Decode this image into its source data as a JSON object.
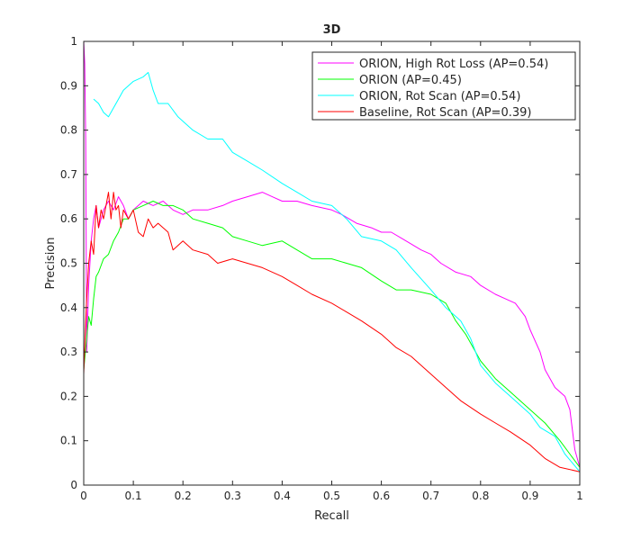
{
  "chart_data": {
    "type": "line",
    "title": "3D",
    "xlabel": "Recall",
    "ylabel": "Precision",
    "xlim": [
      0,
      1
    ],
    "ylim": [
      0,
      1
    ],
    "grid": false,
    "legend_position": "top-right",
    "xticks": [
      0,
      0.1,
      0.2,
      0.3,
      0.4,
      0.5,
      0.6,
      0.7,
      0.8,
      0.9,
      1
    ],
    "yticks": [
      0,
      0.1,
      0.2,
      0.3,
      0.4,
      0.5,
      0.6,
      0.7,
      0.8,
      0.9,
      1
    ],
    "xtick_labels": [
      "0",
      "0.1",
      "0.2",
      "0.3",
      "0.4",
      "0.5",
      "0.6",
      "0.7",
      "0.8",
      "0.9",
      "1"
    ],
    "ytick_labels": [
      "0",
      "0.1",
      "0.2",
      "0.3",
      "0.4",
      "0.5",
      "0.6",
      "0.7",
      "0.8",
      "0.9",
      "1"
    ],
    "series": [
      {
        "name": "ORION, High Rot Loss (AP=0.54)",
        "color": "#ff00ff",
        "x": [
          0.0,
          0.002,
          0.004,
          0.006,
          0.01,
          0.015,
          0.02,
          0.025,
          0.03,
          0.04,
          0.05,
          0.06,
          0.07,
          0.08,
          0.09,
          0.1,
          0.12,
          0.14,
          0.16,
          0.18,
          0.2,
          0.22,
          0.25,
          0.28,
          0.3,
          0.33,
          0.36,
          0.38,
          0.4,
          0.43,
          0.46,
          0.5,
          0.52,
          0.55,
          0.58,
          0.6,
          0.62,
          0.65,
          0.68,
          0.7,
          0.72,
          0.75,
          0.78,
          0.8,
          0.83,
          0.85,
          0.87,
          0.89,
          0.9,
          0.92,
          0.93,
          0.95,
          0.97,
          0.98,
          0.99,
          1.0
        ],
        "y": [
          1.0,
          0.95,
          0.78,
          0.3,
          0.45,
          0.55,
          0.6,
          0.63,
          0.58,
          0.62,
          0.64,
          0.62,
          0.65,
          0.63,
          0.6,
          0.62,
          0.64,
          0.63,
          0.64,
          0.62,
          0.61,
          0.62,
          0.62,
          0.63,
          0.64,
          0.65,
          0.66,
          0.65,
          0.64,
          0.64,
          0.63,
          0.62,
          0.61,
          0.59,
          0.58,
          0.57,
          0.57,
          0.55,
          0.53,
          0.52,
          0.5,
          0.48,
          0.47,
          0.45,
          0.43,
          0.42,
          0.41,
          0.38,
          0.35,
          0.3,
          0.26,
          0.22,
          0.2,
          0.17,
          0.08,
          0.04
        ]
      },
      {
        "name": "ORION (AP=0.45)",
        "color": "#00ff00",
        "x": [
          0.0,
          0.005,
          0.01,
          0.015,
          0.02,
          0.025,
          0.03,
          0.04,
          0.05,
          0.06,
          0.07,
          0.08,
          0.09,
          0.1,
          0.12,
          0.14,
          0.16,
          0.18,
          0.2,
          0.22,
          0.25,
          0.28,
          0.3,
          0.33,
          0.36,
          0.4,
          0.43,
          0.46,
          0.5,
          0.53,
          0.56,
          0.6,
          0.63,
          0.66,
          0.7,
          0.73,
          0.75,
          0.77,
          0.8,
          0.83,
          0.86,
          0.9,
          0.93,
          0.96,
          0.98,
          1.0
        ],
        "y": [
          0.26,
          0.32,
          0.38,
          0.36,
          0.42,
          0.47,
          0.48,
          0.51,
          0.52,
          0.55,
          0.57,
          0.6,
          0.6,
          0.62,
          0.63,
          0.64,
          0.63,
          0.63,
          0.62,
          0.6,
          0.59,
          0.58,
          0.56,
          0.55,
          0.54,
          0.55,
          0.53,
          0.51,
          0.51,
          0.5,
          0.49,
          0.46,
          0.44,
          0.44,
          0.43,
          0.41,
          0.37,
          0.34,
          0.28,
          0.24,
          0.21,
          0.17,
          0.14,
          0.1,
          0.07,
          0.04
        ]
      },
      {
        "name": "ORION, Rot Scan (AP=0.54)",
        "color": "#00ffff",
        "x": [
          0.02,
          0.03,
          0.04,
          0.05,
          0.06,
          0.07,
          0.08,
          0.1,
          0.12,
          0.13,
          0.14,
          0.15,
          0.17,
          0.19,
          0.2,
          0.22,
          0.25,
          0.28,
          0.3,
          0.33,
          0.36,
          0.4,
          0.43,
          0.46,
          0.5,
          0.53,
          0.56,
          0.6,
          0.63,
          0.66,
          0.7,
          0.73,
          0.76,
          0.78,
          0.8,
          0.83,
          0.86,
          0.88,
          0.9,
          0.92,
          0.95,
          0.97,
          1.0
        ],
        "y": [
          0.87,
          0.86,
          0.84,
          0.83,
          0.85,
          0.87,
          0.89,
          0.91,
          0.92,
          0.93,
          0.89,
          0.86,
          0.86,
          0.83,
          0.82,
          0.8,
          0.78,
          0.78,
          0.75,
          0.73,
          0.71,
          0.68,
          0.66,
          0.64,
          0.63,
          0.6,
          0.56,
          0.55,
          0.53,
          0.49,
          0.44,
          0.4,
          0.37,
          0.33,
          0.27,
          0.23,
          0.2,
          0.18,
          0.16,
          0.13,
          0.11,
          0.07,
          0.03
        ]
      },
      {
        "name": "Baseline, Rot Scan (AP=0.39)",
        "color": "#ff0000",
        "x": [
          0.0,
          0.005,
          0.01,
          0.015,
          0.02,
          0.025,
          0.03,
          0.035,
          0.04,
          0.05,
          0.055,
          0.06,
          0.065,
          0.07,
          0.075,
          0.08,
          0.09,
          0.1,
          0.11,
          0.12,
          0.13,
          0.14,
          0.15,
          0.17,
          0.18,
          0.2,
          0.22,
          0.25,
          0.27,
          0.3,
          0.33,
          0.36,
          0.4,
          0.43,
          0.46,
          0.5,
          0.53,
          0.56,
          0.6,
          0.63,
          0.66,
          0.7,
          0.73,
          0.76,
          0.8,
          0.83,
          0.86,
          0.9,
          0.93,
          0.96,
          1.0
        ],
        "y": [
          0.25,
          0.4,
          0.5,
          0.55,
          0.52,
          0.63,
          0.58,
          0.62,
          0.6,
          0.66,
          0.6,
          0.66,
          0.62,
          0.63,
          0.58,
          0.62,
          0.6,
          0.62,
          0.57,
          0.56,
          0.6,
          0.58,
          0.59,
          0.57,
          0.53,
          0.55,
          0.53,
          0.52,
          0.5,
          0.51,
          0.5,
          0.49,
          0.47,
          0.45,
          0.43,
          0.41,
          0.39,
          0.37,
          0.34,
          0.31,
          0.29,
          0.25,
          0.22,
          0.19,
          0.16,
          0.14,
          0.12,
          0.09,
          0.06,
          0.04,
          0.03
        ]
      }
    ]
  }
}
